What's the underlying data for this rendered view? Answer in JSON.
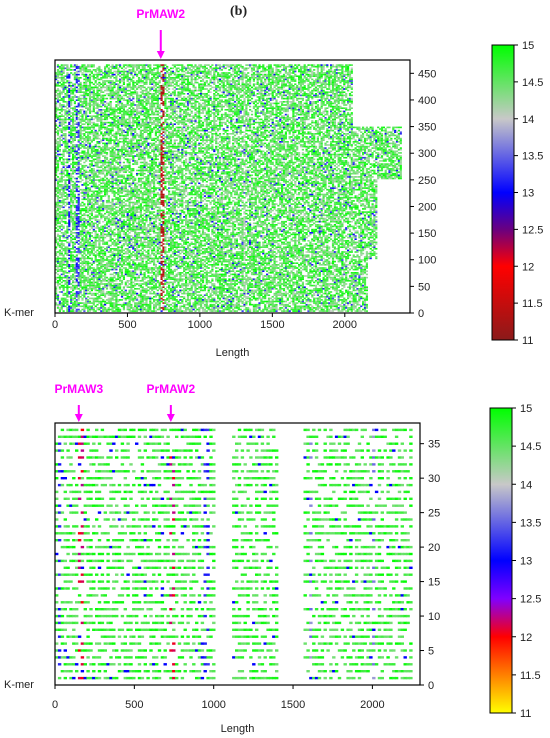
{
  "panel_label": "(b)",
  "chart_data": [
    {
      "type": "heatmap",
      "title": "",
      "xlabel": "Length",
      "ylabel": "K-mer",
      "xlim": [
        0,
        2450
      ],
      "ylim": [
        0,
        475
      ],
      "x_ticks": [
        0,
        500,
        1000,
        1500,
        2000
      ],
      "y_ticks": [
        0,
        50,
        100,
        150,
        200,
        250,
        300,
        350,
        400,
        450
      ],
      "y_axis_side": "right",
      "grid": false,
      "annotations": [
        {
          "label": "PrMAW2",
          "x": 730
        }
      ],
      "colorbar": {
        "range": [
          11,
          15
        ],
        "ticks": [
          11,
          11.5,
          12,
          12.5,
          13,
          13.5,
          14,
          14.5,
          15
        ],
        "colors": [
          "#8b1a1a",
          "#ff0000",
          "#6a0080",
          "#0000ff",
          "#c8c8c8",
          "#00ff00"
        ],
        "color_stops": [
          11,
          12,
          12.5,
          13,
          14,
          15
        ]
      },
      "columns": [
        {
          "x": 730,
          "value": 11.2
        },
        {
          "x": 150,
          "value": 13.0
        },
        {
          "x": 90,
          "value": 12.8
        },
        {
          "x": 1300,
          "value": 14.0
        }
      ],
      "max_length_by_row_band": [
        {
          "k_range": [
            0,
            100
          ],
          "max_x": 2150
        },
        {
          "k_range": [
            100,
            250
          ],
          "max_x": 2220
        },
        {
          "k_range": [
            250,
            350
          ],
          "max_x": 2380
        },
        {
          "k_range": [
            350,
            475
          ],
          "max_x": 2050
        }
      ],
      "dominant_value": 15
    },
    {
      "type": "heatmap",
      "title": "",
      "xlabel": "Length",
      "ylabel": "K-mer",
      "xlim": [
        0,
        2300
      ],
      "ylim": [
        0,
        38
      ],
      "x_ticks": [
        0,
        500,
        1000,
        1500,
        2000
      ],
      "y_ticks": [
        0,
        5,
        10,
        15,
        20,
        25,
        30,
        35
      ],
      "y_axis_side": "right",
      "grid": false,
      "annotations": [
        {
          "label": "PrMAW3",
          "x": 150
        },
        {
          "label": "PrMAW2",
          "x": 730
        }
      ],
      "colorbar": {
        "range": [
          11,
          15
        ],
        "ticks": [
          11,
          11.5,
          12,
          12.5,
          13,
          13.5,
          14,
          14.5,
          15
        ],
        "colors": [
          "#ffff00",
          "#ff0000",
          "#8000ff",
          "#0000ff",
          "#c8c8c8",
          "#00ff00"
        ],
        "color_stops": [
          11,
          12,
          12.5,
          13,
          14,
          15
        ]
      },
      "columns": [
        {
          "x": 150,
          "value": 12.0
        },
        {
          "x": 730,
          "value": 12.0
        },
        {
          "x": 20,
          "value": 13.0
        },
        {
          "x": 950,
          "value": 13.0
        },
        {
          "x": 1600,
          "value": 13.5
        },
        {
          "x": 2000,
          "value": 13.5
        }
      ],
      "gaps": [
        [
          990,
          1100
        ],
        [
          1400,
          1560
        ]
      ],
      "max_length": 2250,
      "dominant_value": 15
    }
  ]
}
